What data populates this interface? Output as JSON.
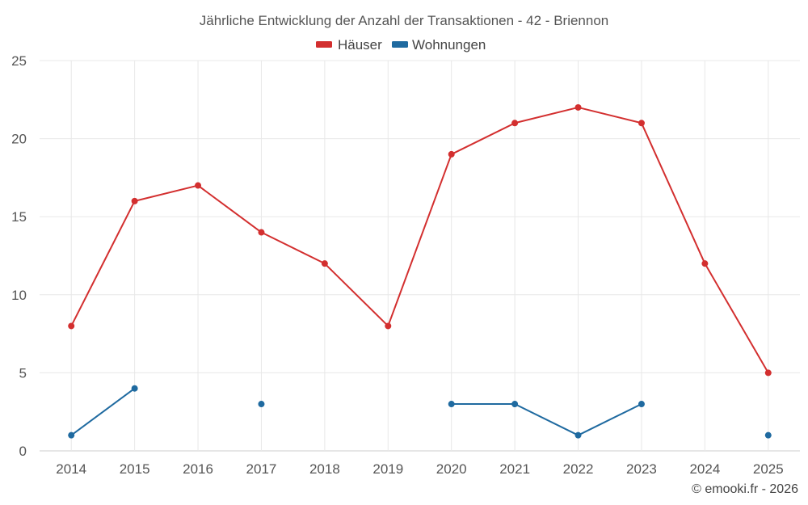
{
  "chart_data": {
    "type": "line",
    "title": "Jährliche Entwicklung der Anzahl der Transaktionen - 42 - Briennon",
    "categories": [
      "2014",
      "2015",
      "2016",
      "2017",
      "2018",
      "2019",
      "2020",
      "2021",
      "2022",
      "2023",
      "2024",
      "2025"
    ],
    "ylim": [
      0,
      25
    ],
    "yticks": [
      0,
      5,
      10,
      15,
      20,
      25
    ],
    "grid": true,
    "legend_position": "top-center",
    "series": [
      {
        "name": "Häuser",
        "color": "#d32f2f",
        "values": [
          8,
          16,
          17,
          14,
          12,
          8,
          19,
          21,
          22,
          21,
          12,
          5
        ]
      },
      {
        "name": "Wohnungen",
        "color": "#1f6aa0",
        "values": [
          1,
          4,
          null,
          3,
          null,
          null,
          3,
          3,
          1,
          3,
          null,
          1
        ]
      }
    ]
  },
  "credit": "© emooki.fr - 2026"
}
